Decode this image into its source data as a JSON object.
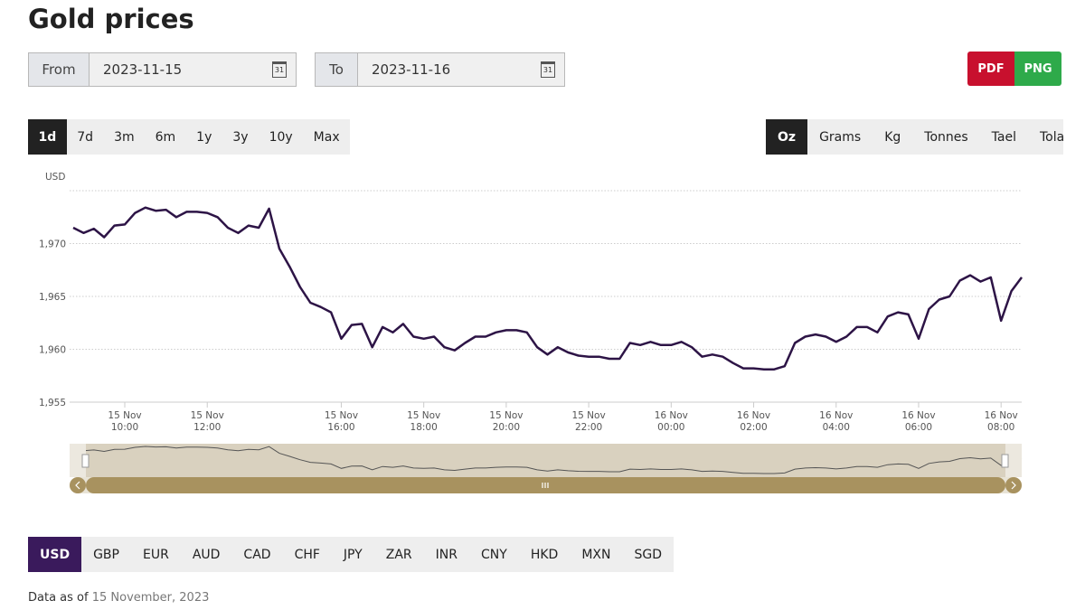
{
  "header": {
    "title": "Gold prices"
  },
  "date_range": {
    "from_label": "From",
    "from_value": "2023-11-15",
    "to_label": "To",
    "to_value": "2023-11-16",
    "calendar_icon": "31"
  },
  "export_buttons": [
    "PDF",
    "PNG"
  ],
  "range_buttons": {
    "items": [
      "1d",
      "7d",
      "3m",
      "6m",
      "1y",
      "3y",
      "10y",
      "Max"
    ],
    "active": "1d"
  },
  "unit_buttons": {
    "items": [
      "Oz",
      "Grams",
      "Kg",
      "Tonnes",
      "Tael",
      "Tola"
    ],
    "active": "Oz"
  },
  "currency_buttons": {
    "items": [
      "USD",
      "GBP",
      "EUR",
      "AUD",
      "CAD",
      "CHF",
      "JPY",
      "ZAR",
      "INR",
      "CNY",
      "HKD",
      "MXN",
      "SGD"
    ],
    "active": "USD"
  },
  "footer": {
    "label": "Data as of",
    "date": "15 November, 2023"
  },
  "chart_data": {
    "type": "line",
    "y_label": "USD",
    "color": "#2d1446",
    "grid": true,
    "x": [
      "15 Nov 08:45",
      "15 Nov 09:00",
      "15 Nov 09:15",
      "15 Nov 09:30",
      "15 Nov 09:45",
      "15 Nov 10:00",
      "15 Nov 10:15",
      "15 Nov 10:30",
      "15 Nov 10:45",
      "15 Nov 11:00",
      "15 Nov 11:15",
      "15 Nov 11:30",
      "15 Nov 11:45",
      "15 Nov 12:00",
      "15 Nov 12:15",
      "15 Nov 12:30",
      "15 Nov 12:45",
      "15 Nov 13:00",
      "15 Nov 13:15",
      "15 Nov 13:30",
      "15 Nov 14:30",
      "15 Nov 14:45",
      "15 Nov 15:00",
      "15 Nov 15:15",
      "15 Nov 15:30",
      "15 Nov 15:45",
      "15 Nov 16:00",
      "15 Nov 16:15",
      "15 Nov 16:30",
      "15 Nov 16:45",
      "15 Nov 17:00",
      "15 Nov 17:15",
      "15 Nov 17:30",
      "15 Nov 17:45",
      "15 Nov 18:00",
      "15 Nov 18:15",
      "15 Nov 18:30",
      "15 Nov 18:45",
      "15 Nov 19:00",
      "15 Nov 19:15",
      "15 Nov 19:30",
      "15 Nov 19:45",
      "15 Nov 20:00",
      "15 Nov 20:15",
      "15 Nov 20:30",
      "15 Nov 20:45",
      "15 Nov 21:00",
      "15 Nov 21:15",
      "15 Nov 21:30",
      "15 Nov 21:45",
      "15 Nov 22:00",
      "15 Nov 22:15",
      "15 Nov 22:30",
      "15 Nov 22:45",
      "15 Nov 23:00",
      "15 Nov 23:15",
      "15 Nov 23:30",
      "15 Nov 23:45",
      "16 Nov 00:00",
      "16 Nov 00:15",
      "16 Nov 00:30",
      "16 Nov 00:45",
      "16 Nov 01:00",
      "16 Nov 01:15",
      "16 Nov 01:30",
      "16 Nov 01:45",
      "16 Nov 02:00",
      "16 Nov 02:15",
      "16 Nov 02:30",
      "16 Nov 02:45",
      "16 Nov 03:00",
      "16 Nov 03:15",
      "16 Nov 03:30",
      "16 Nov 03:45",
      "16 Nov 04:00",
      "16 Nov 04:15",
      "16 Nov 04:30",
      "16 Nov 04:45",
      "16 Nov 05:00",
      "16 Nov 05:15",
      "16 Nov 05:30",
      "16 Nov 05:45",
      "16 Nov 06:00",
      "16 Nov 06:15",
      "16 Nov 06:30",
      "16 Nov 06:45",
      "16 Nov 07:00",
      "16 Nov 07:15",
      "16 Nov 07:30",
      "16 Nov 07:45",
      "16 Nov 08:00",
      "16 Nov 08:15",
      "16 Nov 08:30"
    ],
    "values": [
      1971.5,
      1971.0,
      1971.4,
      1970.6,
      1971.7,
      1971.8,
      1972.9,
      1973.4,
      1973.1,
      1973.2,
      1972.5,
      1973.0,
      1973.0,
      1972.9,
      1972.5,
      1971.5,
      1971.0,
      1971.7,
      1971.5,
      1973.3,
      1969.5,
      1967.8,
      1965.9,
      1964.4,
      1964.0,
      1963.5,
      1961.0,
      1962.3,
      1962.4,
      1960.2,
      1962.1,
      1961.6,
      1962.4,
      1961.2,
      1961.0,
      1961.2,
      1960.2,
      1959.9,
      1960.6,
      1961.2,
      1961.2,
      1961.6,
      1961.8,
      1961.8,
      1961.6,
      1960.2,
      1959.5,
      1960.2,
      1959.7,
      1959.4,
      1959.3,
      1959.3,
      1959.1,
      1959.1,
      1960.6,
      1960.4,
      1960.7,
      1960.4,
      1960.4,
      1960.7,
      1960.2,
      1959.3,
      1959.5,
      1959.3,
      1958.7,
      1958.2,
      1958.2,
      1958.1,
      1958.1,
      1958.4,
      1960.6,
      1961.2,
      1961.4,
      1961.2,
      1960.7,
      1961.2,
      1962.1,
      1962.1,
      1961.6,
      1963.1,
      1963.5,
      1963.3,
      1961.0,
      1963.8,
      1964.7,
      1965.0,
      1966.5,
      1967.0,
      1966.4,
      1966.8,
      1962.7,
      1965.5,
      1966.8
    ],
    "xticks": [
      "15 Nov 10:00",
      "15 Nov 12:00",
      "15 Nov 16:00",
      "15 Nov 18:00",
      "15 Nov 20:00",
      "15 Nov 22:00",
      "16 Nov 00:00",
      "16 Nov 02:00",
      "16 Nov 04:00",
      "16 Nov 06:00",
      "16 Nov 08:00"
    ],
    "ylim": [
      1955,
      1975
    ],
    "yticks": [
      {
        "value": 1955,
        "label": "1,955"
      },
      {
        "value": 1960,
        "label": "1,960"
      },
      {
        "value": 1965,
        "label": "1,965"
      },
      {
        "value": 1970,
        "label": "1,970"
      }
    ]
  }
}
